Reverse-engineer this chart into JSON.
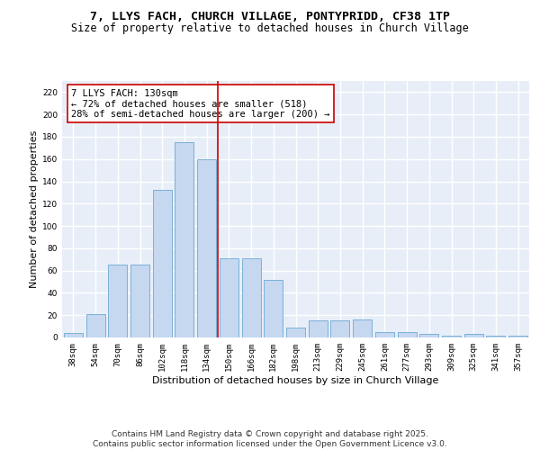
{
  "title_line1": "7, LLYS FACH, CHURCH VILLAGE, PONTYPRIDD, CF38 1TP",
  "title_line2": "Size of property relative to detached houses in Church Village",
  "xlabel": "Distribution of detached houses by size in Church Village",
  "ylabel": "Number of detached properties",
  "categories": [
    "38sqm",
    "54sqm",
    "70sqm",
    "86sqm",
    "102sqm",
    "118sqm",
    "134sqm",
    "150sqm",
    "166sqm",
    "182sqm",
    "198sqm",
    "213sqm",
    "229sqm",
    "245sqm",
    "261sqm",
    "277sqm",
    "293sqm",
    "309sqm",
    "325sqm",
    "341sqm",
    "357sqm"
  ],
  "values": [
    4,
    21,
    65,
    65,
    132,
    175,
    160,
    71,
    71,
    52,
    9,
    15,
    15,
    16,
    5,
    5,
    3,
    2,
    3,
    2,
    2
  ],
  "bar_color": "#c5d8f0",
  "bar_edge_color": "#7ab0d8",
  "vline_color": "#cc0000",
  "vline_index": 6.5,
  "annotation_text": "7 LLYS FACH: 130sqm\n← 72% of detached houses are smaller (518)\n28% of semi-detached houses are larger (200) →",
  "annotation_box_color": "#ffffff",
  "annotation_box_edge": "#cc0000",
  "ylim": [
    0,
    230
  ],
  "yticks": [
    0,
    20,
    40,
    60,
    80,
    100,
    120,
    140,
    160,
    180,
    200,
    220
  ],
  "background_color": "#e8eef8",
  "grid_color": "#ffffff",
  "footer_text": "Contains HM Land Registry data © Crown copyright and database right 2025.\nContains public sector information licensed under the Open Government Licence v3.0.",
  "title_fontsize": 9.5,
  "subtitle_fontsize": 8.5,
  "axis_label_fontsize": 8,
  "tick_fontsize": 6.5,
  "annotation_fontsize": 7.5,
  "footer_fontsize": 6.5
}
